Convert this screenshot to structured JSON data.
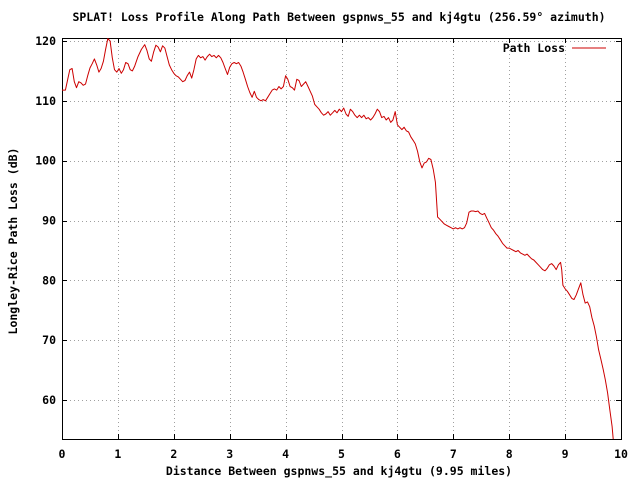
{
  "chart_data": {
    "type": "line",
    "title": "SPLAT! Loss Profile Along Path Between gspnws_55 and kj4gtu (256.59° azimuth)",
    "xlabel": "Distance Between gspnws_55 and kj4gtu (9.95 miles)",
    "ylabel": "Longley-Rice Path Loss (dB)",
    "xlim": [
      0,
      10
    ],
    "ylim": [
      53.5,
      120.5
    ],
    "x_ticks": [
      "0",
      "1",
      "2",
      "3",
      "4",
      "5",
      "6",
      "7",
      "8",
      "9",
      "10"
    ],
    "y_ticks": [
      "60",
      "70",
      "80",
      "90",
      "100",
      "110",
      "120"
    ],
    "grid": true,
    "legend_position": "top-right",
    "colors": {
      "series": "#cc0000",
      "grid": "#a0a0a0",
      "frame": "#000000"
    },
    "series": [
      {
        "name": "Path Loss",
        "points": [
          [
            0.0,
            111.8
          ],
          [
            0.06,
            111.8
          ],
          [
            0.1,
            113.5
          ],
          [
            0.14,
            115.2
          ],
          [
            0.18,
            115.4
          ],
          [
            0.22,
            113.2
          ],
          [
            0.26,
            112.2
          ],
          [
            0.3,
            113.2
          ],
          [
            0.34,
            113.0
          ],
          [
            0.38,
            112.6
          ],
          [
            0.42,
            112.8
          ],
          [
            0.46,
            114.2
          ],
          [
            0.5,
            115.5
          ],
          [
            0.54,
            116.2
          ],
          [
            0.58,
            117.0
          ],
          [
            0.62,
            116.0
          ],
          [
            0.66,
            114.8
          ],
          [
            0.7,
            115.4
          ],
          [
            0.74,
            116.6
          ],
          [
            0.78,
            118.6
          ],
          [
            0.82,
            120.4
          ],
          [
            0.86,
            120.0
          ],
          [
            0.9,
            117.2
          ],
          [
            0.94,
            115.2
          ],
          [
            0.98,
            114.8
          ],
          [
            1.02,
            115.4
          ],
          [
            1.06,
            114.6
          ],
          [
            1.1,
            115.2
          ],
          [
            1.14,
            116.4
          ],
          [
            1.18,
            116.2
          ],
          [
            1.22,
            115.2
          ],
          [
            1.26,
            115.0
          ],
          [
            1.3,
            115.8
          ],
          [
            1.36,
            117.4
          ],
          [
            1.42,
            118.6
          ],
          [
            1.48,
            119.4
          ],
          [
            1.52,
            118.4
          ],
          [
            1.56,
            117.0
          ],
          [
            1.6,
            116.6
          ],
          [
            1.64,
            118.2
          ],
          [
            1.68,
            119.3
          ],
          [
            1.72,
            119.0
          ],
          [
            1.76,
            118.2
          ],
          [
            1.8,
            119.2
          ],
          [
            1.84,
            118.8
          ],
          [
            1.88,
            117.4
          ],
          [
            1.92,
            116.0
          ],
          [
            1.96,
            115.2
          ],
          [
            2.0,
            114.6
          ],
          [
            2.04,
            114.2
          ],
          [
            2.08,
            114.0
          ],
          [
            2.12,
            113.6
          ],
          [
            2.16,
            113.2
          ],
          [
            2.2,
            113.4
          ],
          [
            2.24,
            114.2
          ],
          [
            2.28,
            114.8
          ],
          [
            2.32,
            113.8
          ],
          [
            2.36,
            115.2
          ],
          [
            2.4,
            117.0
          ],
          [
            2.44,
            117.6
          ],
          [
            2.48,
            117.2
          ],
          [
            2.52,
            117.4
          ],
          [
            2.56,
            116.8
          ],
          [
            2.6,
            117.4
          ],
          [
            2.64,
            117.8
          ],
          [
            2.68,
            117.4
          ],
          [
            2.72,
            117.6
          ],
          [
            2.76,
            117.2
          ],
          [
            2.8,
            117.6
          ],
          [
            2.84,
            117.2
          ],
          [
            2.88,
            116.4
          ],
          [
            2.92,
            115.4
          ],
          [
            2.96,
            114.4
          ],
          [
            3.0,
            115.6
          ],
          [
            3.04,
            116.2
          ],
          [
            3.08,
            116.4
          ],
          [
            3.12,
            116.2
          ],
          [
            3.16,
            116.4
          ],
          [
            3.2,
            115.8
          ],
          [
            3.24,
            114.8
          ],
          [
            3.28,
            113.6
          ],
          [
            3.32,
            112.4
          ],
          [
            3.36,
            111.4
          ],
          [
            3.4,
            110.6
          ],
          [
            3.44,
            111.6
          ],
          [
            3.48,
            110.6
          ],
          [
            3.52,
            110.2
          ],
          [
            3.56,
            110.0
          ],
          [
            3.6,
            110.2
          ],
          [
            3.64,
            110.0
          ],
          [
            3.68,
            110.6
          ],
          [
            3.72,
            111.2
          ],
          [
            3.76,
            111.8
          ],
          [
            3.8,
            112.0
          ],
          [
            3.84,
            111.8
          ],
          [
            3.88,
            112.4
          ],
          [
            3.92,
            112.0
          ],
          [
            3.96,
            112.4
          ],
          [
            4.0,
            114.2
          ],
          [
            4.04,
            113.6
          ],
          [
            4.08,
            112.4
          ],
          [
            4.12,
            112.2
          ],
          [
            4.16,
            111.8
          ],
          [
            4.2,
            113.6
          ],
          [
            4.24,
            113.4
          ],
          [
            4.28,
            112.4
          ],
          [
            4.32,
            112.8
          ],
          [
            4.36,
            113.2
          ],
          [
            4.4,
            112.4
          ],
          [
            4.44,
            111.6
          ],
          [
            4.48,
            110.8
          ],
          [
            4.52,
            109.4
          ],
          [
            4.56,
            109.0
          ],
          [
            4.6,
            108.6
          ],
          [
            4.64,
            108.0
          ],
          [
            4.68,
            107.6
          ],
          [
            4.72,
            107.8
          ],
          [
            4.76,
            108.2
          ],
          [
            4.8,
            107.6
          ],
          [
            4.84,
            108.0
          ],
          [
            4.88,
            108.4
          ],
          [
            4.92,
            108.0
          ],
          [
            4.96,
            108.6
          ],
          [
            5.0,
            108.2
          ],
          [
            5.04,
            108.8
          ],
          [
            5.08,
            107.8
          ],
          [
            5.12,
            107.4
          ],
          [
            5.16,
            108.6
          ],
          [
            5.2,
            108.2
          ],
          [
            5.24,
            107.6
          ],
          [
            5.28,
            107.2
          ],
          [
            5.32,
            107.6
          ],
          [
            5.36,
            107.2
          ],
          [
            5.4,
            107.6
          ],
          [
            5.44,
            107.0
          ],
          [
            5.48,
            107.2
          ],
          [
            5.52,
            106.8
          ],
          [
            5.56,
            107.2
          ],
          [
            5.6,
            107.8
          ],
          [
            5.64,
            108.6
          ],
          [
            5.68,
            108.2
          ],
          [
            5.72,
            107.2
          ],
          [
            5.76,
            107.4
          ],
          [
            5.8,
            106.8
          ],
          [
            5.84,
            107.2
          ],
          [
            5.88,
            106.4
          ],
          [
            5.92,
            106.8
          ],
          [
            5.96,
            108.2
          ],
          [
            6.0,
            106.0
          ],
          [
            6.04,
            105.6
          ],
          [
            6.08,
            105.2
          ],
          [
            6.12,
            105.6
          ],
          [
            6.16,
            105.0
          ],
          [
            6.2,
            104.8
          ],
          [
            6.24,
            104.0
          ],
          [
            6.28,
            103.4
          ],
          [
            6.32,
            102.8
          ],
          [
            6.36,
            101.6
          ],
          [
            6.4,
            99.8
          ],
          [
            6.44,
            98.8
          ],
          [
            6.48,
            99.6
          ],
          [
            6.52,
            99.8
          ],
          [
            6.56,
            100.4
          ],
          [
            6.6,
            100.2
          ],
          [
            6.64,
            98.6
          ],
          [
            6.68,
            96.4
          ],
          [
            6.72,
            90.6
          ],
          [
            6.76,
            90.2
          ],
          [
            6.8,
            89.8
          ],
          [
            6.84,
            89.4
          ],
          [
            6.88,
            89.2
          ],
          [
            6.92,
            89.0
          ],
          [
            6.96,
            88.8
          ],
          [
            7.0,
            88.6
          ],
          [
            7.04,
            88.8
          ],
          [
            7.08,
            88.6
          ],
          [
            7.12,
            88.8
          ],
          [
            7.16,
            88.6
          ],
          [
            7.2,
            88.8
          ],
          [
            7.24,
            89.6
          ],
          [
            7.28,
            91.4
          ],
          [
            7.32,
            91.6
          ],
          [
            7.36,
            91.6
          ],
          [
            7.4,
            91.5
          ],
          [
            7.44,
            91.6
          ],
          [
            7.48,
            91.2
          ],
          [
            7.52,
            91.0
          ],
          [
            7.56,
            91.2
          ],
          [
            7.6,
            90.4
          ],
          [
            7.64,
            89.6
          ],
          [
            7.68,
            88.8
          ],
          [
            7.72,
            88.4
          ],
          [
            7.76,
            87.8
          ],
          [
            7.8,
            87.4
          ],
          [
            7.84,
            86.8
          ],
          [
            7.88,
            86.2
          ],
          [
            7.92,
            85.8
          ],
          [
            7.96,
            85.4
          ],
          [
            8.0,
            85.4
          ],
          [
            8.04,
            85.2
          ],
          [
            8.08,
            85.0
          ],
          [
            8.12,
            84.8
          ],
          [
            8.16,
            85.0
          ],
          [
            8.2,
            84.6
          ],
          [
            8.24,
            84.4
          ],
          [
            8.28,
            84.2
          ],
          [
            8.32,
            84.4
          ],
          [
            8.36,
            84.0
          ],
          [
            8.4,
            83.6
          ],
          [
            8.44,
            83.4
          ],
          [
            8.48,
            83.0
          ],
          [
            8.52,
            82.6
          ],
          [
            8.56,
            82.2
          ],
          [
            8.6,
            81.8
          ],
          [
            8.64,
            81.6
          ],
          [
            8.68,
            82.0
          ],
          [
            8.72,
            82.6
          ],
          [
            8.76,
            82.8
          ],
          [
            8.8,
            82.4
          ],
          [
            8.84,
            81.8
          ],
          [
            8.88,
            82.6
          ],
          [
            8.92,
            83.0
          ],
          [
            8.94,
            81.8
          ],
          [
            8.96,
            79.2
          ],
          [
            9.0,
            78.6
          ],
          [
            9.04,
            78.2
          ],
          [
            9.08,
            77.6
          ],
          [
            9.12,
            77.0
          ],
          [
            9.16,
            76.8
          ],
          [
            9.2,
            77.6
          ],
          [
            9.24,
            78.6
          ],
          [
            9.28,
            79.6
          ],
          [
            9.32,
            77.6
          ],
          [
            9.36,
            76.2
          ],
          [
            9.4,
            76.4
          ],
          [
            9.44,
            75.6
          ],
          [
            9.48,
            73.8
          ],
          [
            9.52,
            72.4
          ],
          [
            9.56,
            70.6
          ],
          [
            9.6,
            68.4
          ],
          [
            9.64,
            66.8
          ],
          [
            9.68,
            65.2
          ],
          [
            9.72,
            63.4
          ],
          [
            9.76,
            61.2
          ],
          [
            9.8,
            58.4
          ],
          [
            9.84,
            55.6
          ],
          [
            9.86,
            53.5
          ]
        ]
      }
    ]
  }
}
